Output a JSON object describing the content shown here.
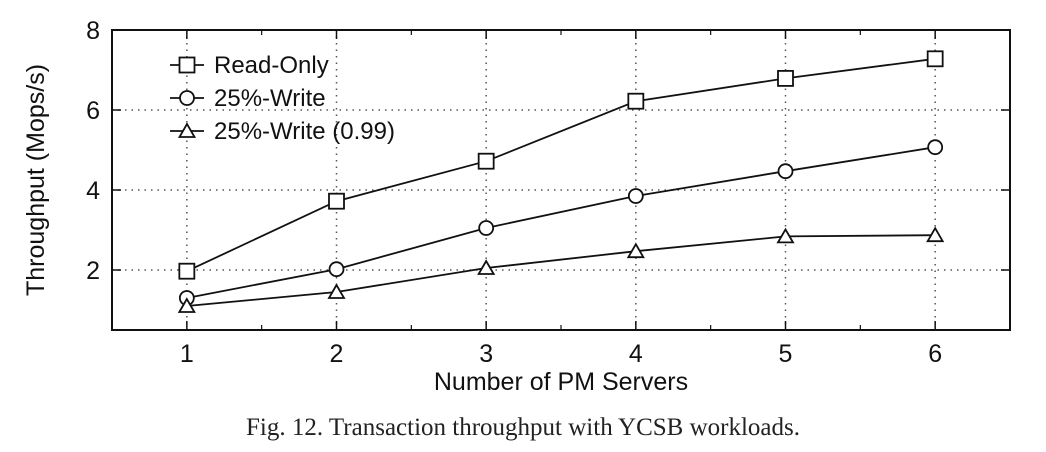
{
  "chart_data": {
    "type": "line",
    "title": "",
    "xlabel": "Number of PM Servers",
    "ylabel": "Throughput (Mops/s)",
    "x": [
      1,
      2,
      3,
      4,
      5,
      6
    ],
    "xlim": [
      0.5,
      6.5
    ],
    "ylim": [
      0.5,
      8
    ],
    "yticks": [
      2,
      4,
      6,
      8
    ],
    "xticks": [
      1,
      2,
      3,
      4,
      5,
      6
    ],
    "grid": true,
    "legend_position": "top-left",
    "series": [
      {
        "name": "Read-Only",
        "marker": "square",
        "values": [
          1.97,
          3.72,
          4.72,
          6.22,
          6.79,
          7.28
        ]
      },
      {
        "name": "25%-Write",
        "marker": "circle",
        "values": [
          1.3,
          2.02,
          3.05,
          3.85,
          4.47,
          5.07
        ]
      },
      {
        "name": "25%-Write (0.99)",
        "marker": "triangle",
        "values": [
          1.1,
          1.45,
          2.05,
          2.47,
          2.84,
          2.87
        ]
      }
    ]
  },
  "caption": "Fig. 12.  Transaction throughput with YCSB workloads."
}
